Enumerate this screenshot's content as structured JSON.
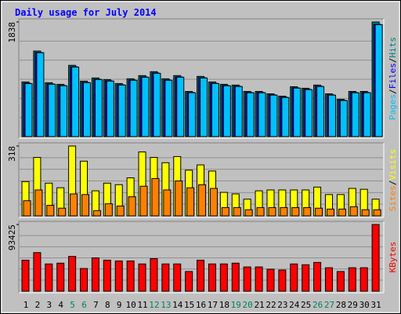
{
  "chart_data": [
    {
      "type": "bar",
      "title": "Daily usage for July 2014",
      "legend_separator": "/",
      "ylim": [
        0,
        1838
      ],
      "yticks": [
        1838
      ],
      "series": [
        {
          "name": "Pages",
          "color": "#00c0ff",
          "values": [
            850,
            1345,
            840,
            815,
            1115,
            865,
            915,
            890,
            827,
            902,
            952,
            1015,
            902,
            952,
            703,
            940,
            851,
            815,
            803,
            703,
            703,
            665,
            627,
            777,
            753,
            803,
            665,
            578,
            703,
            703,
            1795
          ]
        },
        {
          "name": "Files",
          "color": "#0000ff",
          "values": [
            856,
            1350,
            845,
            820,
            1120,
            870,
            920,
            895,
            832,
            907,
            957,
            1020,
            907,
            957,
            708,
            945,
            856,
            820,
            808,
            708,
            708,
            670,
            632,
            782,
            758,
            808,
            670,
            583,
            708,
            708,
            1800
          ]
        },
        {
          "name": "Hits",
          "color": "#008080",
          "values": [
            876,
            1372,
            864,
            838,
            1143,
            889,
            940,
            914,
            851,
            927,
            978,
            1041,
            927,
            978,
            724,
            965,
            876,
            838,
            826,
            724,
            724,
            686,
            648,
            800,
            775,
            826,
            686,
            597,
            724,
            724,
            1838
          ]
        }
      ]
    },
    {
      "type": "bar",
      "legend_separator": "/",
      "ylim": [
        0,
        318
      ],
      "yticks": [
        318
      ],
      "series": [
        {
          "name": "Sites",
          "color": "#ff8000",
          "values": [
            69,
            118,
            48,
            35,
            100,
            97,
            24,
            55,
            45,
            87,
            135,
            170,
            118,
            159,
            128,
            142,
            125,
            38,
            38,
            28,
            38,
            38,
            38,
            38,
            38,
            35,
            31,
            31,
            42,
            28,
            28
          ]
        },
        {
          "name": "Visits",
          "color": "#ffff00",
          "values": [
            156,
            266,
            149,
            128,
            318,
            249,
            114,
            149,
            142,
            173,
            291,
            266,
            242,
            270,
            208,
            232,
            204,
            107,
            100,
            76,
            114,
            118,
            118,
            118,
            118,
            131,
            97,
            97,
            125,
            121,
            76
          ]
        }
      ]
    },
    {
      "type": "bar",
      "ylim": [
        0,
        93425
      ],
      "yticks": [
        93425
      ],
      "categories": [
        "1",
        "2",
        "3",
        "4",
        "5",
        "6",
        "7",
        "8",
        "9",
        "10",
        "11",
        "12",
        "13",
        "14",
        "15",
        "16",
        "17",
        "18",
        "19",
        "20",
        "21",
        "22",
        "23",
        "24",
        "25",
        "26",
        "27",
        "28",
        "29",
        "30",
        "31"
      ],
      "category_colors": [
        "#000000",
        "#000000",
        "#000000",
        "#000000",
        "#008060",
        "#008060",
        "#000000",
        "#000000",
        "#000000",
        "#000000",
        "#000000",
        "#008060",
        "#008060",
        "#000000",
        "#000000",
        "#000000",
        "#000000",
        "#000000",
        "#008060",
        "#008060",
        "#000000",
        "#000000",
        "#000000",
        "#000000",
        "#000000",
        "#008060",
        "#008060",
        "#000000",
        "#000000",
        "#000000",
        "#000000"
      ],
      "series": [
        {
          "name": "KBytes",
          "color": "#ff0000",
          "values": [
            43500,
            54100,
            38200,
            39300,
            48800,
            31800,
            46700,
            43500,
            42400,
            42400,
            38200,
            45600,
            38200,
            38200,
            27600,
            43500,
            38200,
            38200,
            39300,
            34000,
            34000,
            30800,
            29700,
            38200,
            37100,
            40300,
            32900,
            27600,
            32900,
            32900,
            93425
          ]
        }
      ]
    }
  ]
}
